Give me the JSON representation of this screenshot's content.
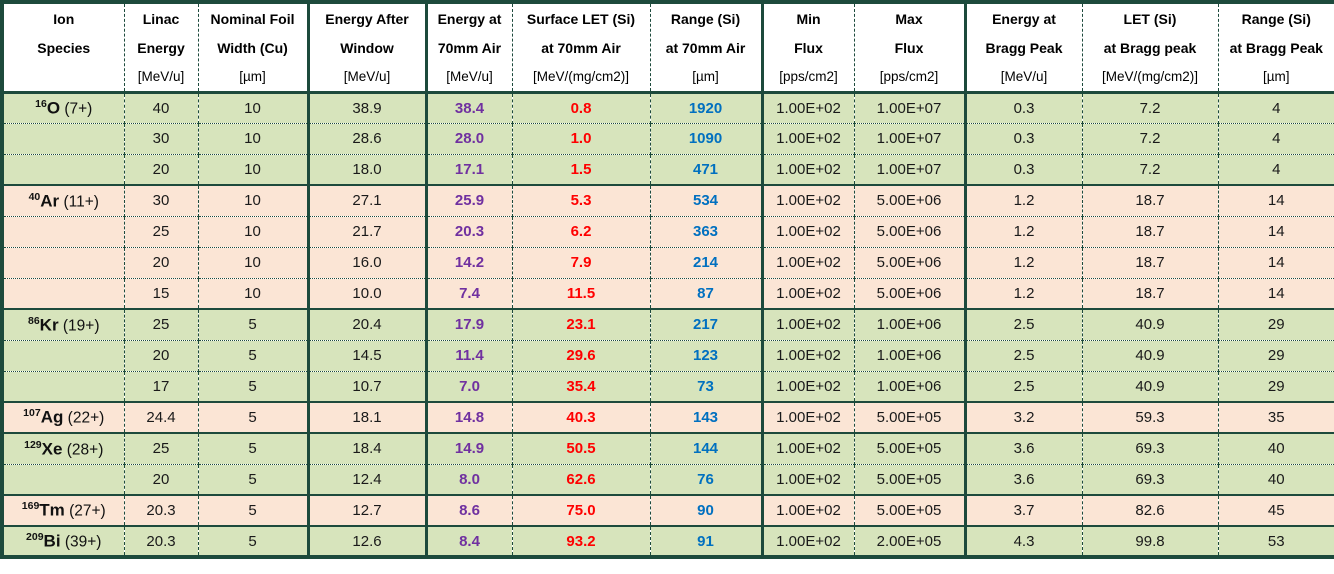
{
  "table": {
    "colors": {
      "border": "#1d4a3c",
      "row_green": "#d7e4bc",
      "row_peach": "#fbe5d5",
      "accent_purple": "#7030a0",
      "accent_red": "#ff0000",
      "accent_blue": "#0070c0",
      "header_bg": "#ffffff"
    },
    "columns": [
      {
        "key": "species",
        "line1": "Ion",
        "line2": "Species",
        "units": ""
      },
      {
        "key": "linac-energy",
        "line1": "Linac",
        "line2": "Energy",
        "units": "[MeV/u]"
      },
      {
        "key": "foil-width",
        "line1": "Nominal Foil",
        "line2": "Width (Cu)",
        "units": "[µm]"
      },
      {
        "key": "energy-after-window",
        "line1": "Energy After",
        "line2": "Window",
        "units": "[MeV/u]"
      },
      {
        "key": "energy-70mm-air",
        "line1": "Energy at",
        "line2": "70mm Air",
        "units": "[MeV/u]"
      },
      {
        "key": "surface-let-70mm",
        "line1": "Surface LET (Si)",
        "line2": "at 70mm Air",
        "units": "[MeV/(mg/cm2)]"
      },
      {
        "key": "range-70mm",
        "line1": "Range (Si)",
        "line2": "at 70mm Air",
        "units": "[µm]"
      },
      {
        "key": "min-flux",
        "line1": "Min",
        "line2": "Flux",
        "units": "[pps/cm2]"
      },
      {
        "key": "max-flux",
        "line1": "Max",
        "line2": "Flux",
        "units": "[pps/cm2]"
      },
      {
        "key": "energy-bragg-peak",
        "line1": "Energy at",
        "line2": "Bragg Peak",
        "units": "[MeV/u]"
      },
      {
        "key": "let-bragg-peak",
        "line1": "LET (Si)",
        "line2": "at Bragg peak",
        "units": "[MeV/(mg/cm2)]"
      },
      {
        "key": "range-bragg-peak",
        "line1": "Range (Si)",
        "line2": "at Bragg Peak",
        "units": "[µm]"
      }
    ],
    "groups": [
      {
        "species": {
          "mass": "16",
          "symbol": "O",
          "charge": "(7+)"
        },
        "bg": "green",
        "rows": [
          [
            "40",
            "10",
            "38.9",
            "38.4",
            "0.8",
            "1920",
            "1.00E+02",
            "1.00E+07",
            "0.3",
            "7.2",
            "4"
          ],
          [
            "30",
            "10",
            "28.6",
            "28.0",
            "1.0",
            "1090",
            "1.00E+02",
            "1.00E+07",
            "0.3",
            "7.2",
            "4"
          ],
          [
            "20",
            "10",
            "18.0",
            "17.1",
            "1.5",
            "471",
            "1.00E+02",
            "1.00E+07",
            "0.3",
            "7.2",
            "4"
          ]
        ]
      },
      {
        "species": {
          "mass": "40",
          "symbol": "Ar",
          "charge": "(11+)"
        },
        "bg": "peach",
        "rows": [
          [
            "30",
            "10",
            "27.1",
            "25.9",
            "5.3",
            "534",
            "1.00E+02",
            "5.00E+06",
            "1.2",
            "18.7",
            "14"
          ],
          [
            "25",
            "10",
            "21.7",
            "20.3",
            "6.2",
            "363",
            "1.00E+02",
            "5.00E+06",
            "1.2",
            "18.7",
            "14"
          ],
          [
            "20",
            "10",
            "16.0",
            "14.2",
            "7.9",
            "214",
            "1.00E+02",
            "5.00E+06",
            "1.2",
            "18.7",
            "14"
          ],
          [
            "15",
            "10",
            "10.0",
            "7.4",
            "11.5",
            "87",
            "1.00E+02",
            "5.00E+06",
            "1.2",
            "18.7",
            "14"
          ]
        ]
      },
      {
        "species": {
          "mass": "86",
          "symbol": "Kr",
          "charge": "(19+)"
        },
        "bg": "green",
        "rows": [
          [
            "25",
            "5",
            "20.4",
            "17.9",
            "23.1",
            "217",
            "1.00E+02",
            "1.00E+06",
            "2.5",
            "40.9",
            "29"
          ],
          [
            "20",
            "5",
            "14.5",
            "11.4",
            "29.6",
            "123",
            "1.00E+02",
            "1.00E+06",
            "2.5",
            "40.9",
            "29"
          ],
          [
            "17",
            "5",
            "10.7",
            "7.0",
            "35.4",
            "73",
            "1.00E+02",
            "1.00E+06",
            "2.5",
            "40.9",
            "29"
          ]
        ]
      },
      {
        "species": {
          "mass": "107",
          "symbol": "Ag",
          "charge": "(22+)"
        },
        "bg": "peach",
        "rows": [
          [
            "24.4",
            "5",
            "18.1",
            "14.8",
            "40.3",
            "143",
            "1.00E+02",
            "5.00E+05",
            "3.2",
            "59.3",
            "35"
          ]
        ]
      },
      {
        "species": {
          "mass": "129",
          "symbol": "Xe",
          "charge": "(28+)"
        },
        "bg": "green",
        "rows": [
          [
            "25",
            "5",
            "18.4",
            "14.9",
            "50.5",
            "144",
            "1.00E+02",
            "5.00E+05",
            "3.6",
            "69.3",
            "40"
          ],
          [
            "20",
            "5",
            "12.4",
            "8.0",
            "62.6",
            "76",
            "1.00E+02",
            "5.00E+05",
            "3.6",
            "69.3",
            "40"
          ]
        ]
      },
      {
        "species": {
          "mass": "169",
          "symbol": "Tm",
          "charge": "(27+)"
        },
        "bg": "peach",
        "rows": [
          [
            "20.3",
            "5",
            "12.7",
            "8.6",
            "75.0",
            "90",
            "1.00E+02",
            "5.00E+05",
            "3.7",
            "82.6",
            "45"
          ]
        ]
      },
      {
        "species": {
          "mass": "209",
          "symbol": "Bi",
          "charge": "(39+)"
        },
        "bg": "green",
        "rows": [
          [
            "20.3",
            "5",
            "12.6",
            "8.4",
            "93.2",
            "91",
            "1.00E+02",
            "2.00E+05",
            "4.3",
            "99.8",
            "53"
          ]
        ]
      }
    ]
  }
}
